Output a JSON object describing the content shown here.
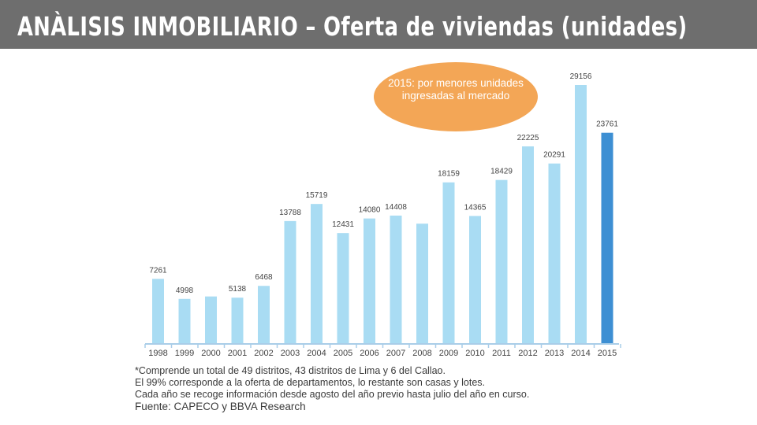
{
  "header": {
    "title": "ANÀLISIS INMOBILIARIO – Oferta de viviendas (unidades)",
    "background": "#6e6e6e"
  },
  "chart_data": {
    "type": "bar",
    "categories": [
      "1998",
      "1999",
      "2000",
      "2001",
      "2002",
      "2003",
      "2004",
      "2005",
      "2006",
      "2007",
      "2008",
      "2009",
      "2010",
      "2011",
      "2012",
      "2013",
      "2014",
      "2015"
    ],
    "values": [
      7261,
      4998,
      5272,
      5138,
      6468,
      13788,
      15719,
      12431,
      14080,
      14408,
      13495,
      18159,
      14365,
      18429,
      22225,
      20291,
      29156,
      23761
    ],
    "data_labels": [
      "7261",
      "4998",
      "",
      "5138",
      "6468",
      "13788",
      "15719",
      "12431",
      "14080",
      "14408",
      "",
      "18159",
      "14365",
      "18429",
      "22225",
      "20291",
      "29156",
      "23761"
    ],
    "title": "",
    "xlabel": "",
    "ylabel": "",
    "ylim": [
      0,
      30000
    ],
    "grid": false,
    "colors": {
      "bar": "#a9dcf3",
      "highlight": "#3d8fd3",
      "axis": "#a9cde8"
    },
    "highlight_index": 17,
    "annotation": {
      "text": "2015: por menores unidades ingresadas al mercado",
      "color": "#f3a656"
    }
  },
  "footnotes": [
    "*Comprende un total de 49 distritos, 43 distritos de Lima y 6 del Callao.",
    "El 99% corresponde a la oferta de departamentos, lo restante son casas y lotes.",
    "Cada año se recoge información desde agosto del año previo hasta julio del año en curso."
  ],
  "source": "Fuente:  CAPECO y BBVA Research"
}
